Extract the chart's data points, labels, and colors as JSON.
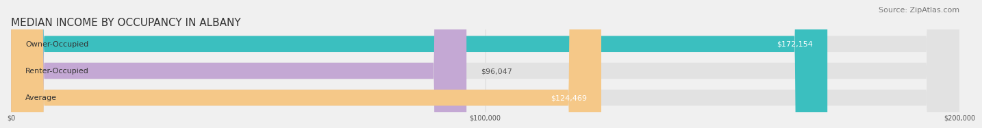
{
  "title": "MEDIAN INCOME BY OCCUPANCY IN ALBANY",
  "source": "Source: ZipAtlas.com",
  "categories": [
    "Owner-Occupied",
    "Renter-Occupied",
    "Average"
  ],
  "values": [
    172154,
    96047,
    124469
  ],
  "bar_colors": [
    "#3bbfbf",
    "#c4a8d4",
    "#f5c888"
  ],
  "value_labels": [
    "$172,154",
    "$96,047",
    "$124,469"
  ],
  "value_inside": [
    true,
    false,
    true
  ],
  "xlim": [
    0,
    200000
  ],
  "xtick_labels": [
    "$0",
    "$100,000",
    "$200,000"
  ],
  "xtick_values": [
    0,
    100000,
    200000
  ],
  "bar_height": 0.6,
  "background_color": "#f0f0f0",
  "bar_bg_color": "#e2e2e2",
  "title_fontsize": 11,
  "source_fontsize": 8,
  "label_fontsize": 8,
  "value_fontsize": 8
}
